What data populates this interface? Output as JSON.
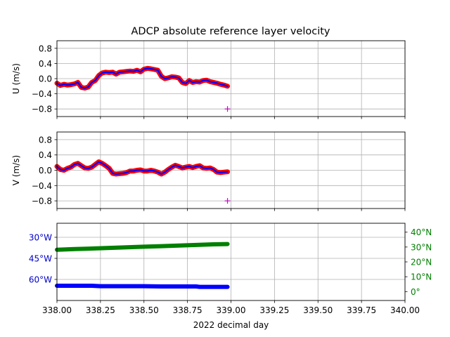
{
  "title": "ADCP absolute reference layer velocity",
  "chart_data": [
    {
      "type": "line",
      "panel": "u",
      "ylabel": "U (m/s)",
      "xlim": [
        338.0,
        340.0
      ],
      "ylim": [
        -1.0,
        1.0
      ],
      "yticks": [
        "0.8",
        "0.4",
        "0.0",
        "−0.4",
        "−0.8"
      ],
      "ytick_values": [
        0.8,
        0.4,
        0.0,
        -0.4,
        -0.8
      ],
      "grid": true,
      "series": [
        {
          "color_outer": "#ff0000",
          "color_inner": "#0000ff",
          "x": [
            338.0,
            338.02,
            338.04,
            338.06,
            338.08,
            338.1,
            338.12,
            338.14,
            338.16,
            338.18,
            338.2,
            338.22,
            338.24,
            338.26,
            338.28,
            338.3,
            338.32,
            338.34,
            338.36,
            338.38,
            338.4,
            338.42,
            338.44,
            338.46,
            338.48,
            338.5,
            338.52,
            338.54,
            338.56,
            338.58,
            338.6,
            338.62,
            338.64,
            338.66,
            338.68,
            338.7,
            338.72,
            338.74,
            338.76,
            338.78,
            338.8,
            338.82,
            338.84,
            338.86,
            338.88,
            338.9,
            338.92,
            338.94,
            338.96,
            338.98
          ],
          "y": [
            -0.12,
            -0.18,
            -0.15,
            -0.17,
            -0.16,
            -0.14,
            -0.1,
            -0.23,
            -0.25,
            -0.22,
            -0.1,
            -0.05,
            0.08,
            0.15,
            0.17,
            0.16,
            0.17,
            0.12,
            0.17,
            0.18,
            0.19,
            0.2,
            0.19,
            0.22,
            0.18,
            0.25,
            0.27,
            0.26,
            0.24,
            0.22,
            0.06,
            0.0,
            0.02,
            0.05,
            0.04,
            0.02,
            -0.1,
            -0.13,
            -0.05,
            -0.1,
            -0.08,
            -0.09,
            -0.05,
            -0.04,
            -0.08,
            -0.1,
            -0.12,
            -0.15,
            -0.17,
            -0.2
          ]
        }
      ],
      "markers": [
        {
          "x": 338.98,
          "y": -0.8,
          "symbol": "+",
          "color": "#cc00cc"
        }
      ]
    },
    {
      "type": "line",
      "panel": "v",
      "ylabel": "V (m/s)",
      "xlim": [
        338.0,
        340.0
      ],
      "ylim": [
        -1.0,
        1.0
      ],
      "yticks": [
        "0.8",
        "0.4",
        "0.0",
        "−0.4",
        "−0.8"
      ],
      "ytick_values": [
        0.8,
        0.4,
        0.0,
        -0.4,
        -0.8
      ],
      "grid": true,
      "series": [
        {
          "color_outer": "#ff0000",
          "color_inner": "#0000ff",
          "x": [
            338.0,
            338.02,
            338.04,
            338.06,
            338.08,
            338.1,
            338.12,
            338.14,
            338.16,
            338.18,
            338.2,
            338.22,
            338.24,
            338.26,
            338.28,
            338.3,
            338.32,
            338.34,
            338.36,
            338.38,
            338.4,
            338.42,
            338.44,
            338.46,
            338.48,
            338.5,
            338.52,
            338.54,
            338.56,
            338.58,
            338.6,
            338.62,
            338.64,
            338.66,
            338.68,
            338.7,
            338.72,
            338.74,
            338.76,
            338.78,
            338.8,
            338.82,
            338.84,
            338.86,
            338.88,
            338.9,
            338.92,
            338.94,
            338.96,
            338.98
          ],
          "y": [
            0.1,
            0.02,
            0.0,
            0.05,
            0.08,
            0.15,
            0.18,
            0.12,
            0.06,
            0.05,
            0.08,
            0.15,
            0.22,
            0.18,
            0.12,
            0.05,
            -0.08,
            -0.1,
            -0.09,
            -0.08,
            -0.06,
            -0.02,
            -0.02,
            0.0,
            0.01,
            -0.02,
            -0.02,
            0.0,
            -0.02,
            -0.05,
            -0.1,
            -0.05,
            0.02,
            0.08,
            0.13,
            0.1,
            0.06,
            0.08,
            0.1,
            0.07,
            0.1,
            0.12,
            0.06,
            0.05,
            0.06,
            0.02,
            -0.05,
            -0.06,
            -0.05,
            -0.04
          ]
        }
      ],
      "markers": [
        {
          "x": 338.98,
          "y": -0.8,
          "symbol": "+",
          "color": "#cc00cc"
        }
      ]
    },
    {
      "type": "scatter",
      "panel": "position",
      "xlabel": "2022 decimal day",
      "xlim": [
        338.0,
        340.0
      ],
      "xticks": [
        "338.00",
        "338.25",
        "338.50",
        "338.75",
        "339.00",
        "339.25",
        "339.50",
        "339.75",
        "340.00"
      ],
      "xtick_values": [
        338.0,
        338.25,
        338.5,
        338.75,
        339.0,
        339.25,
        339.5,
        339.75,
        340.0
      ],
      "left_axis": {
        "color": "#0000cc",
        "ylim": [
          -75,
          -20
        ],
        "yticks": [
          "30°W",
          "45°W",
          "60°W"
        ],
        "ytick_values": [
          -30,
          -45,
          -60
        ]
      },
      "right_axis": {
        "color": "#008000",
        "ylim": [
          -6,
          46
        ],
        "yticks": [
          "40°N",
          "30°N",
          "20°N",
          "10°N",
          "0°"
        ],
        "ytick_values": [
          40,
          30,
          20,
          10,
          0
        ]
      },
      "grid": true,
      "series": [
        {
          "axis": "left",
          "color": "#0000ff",
          "x": [
            338.0,
            338.1,
            338.2,
            338.25,
            338.3,
            338.4,
            338.5,
            338.6,
            338.7,
            338.8,
            338.82,
            338.9,
            338.98
          ],
          "y": [
            -64.5,
            -64.5,
            -64.5,
            -64.8,
            -64.8,
            -64.8,
            -64.8,
            -65.0,
            -65.0,
            -65.0,
            -65.3,
            -65.3,
            -65.3
          ]
        },
        {
          "axis": "right",
          "color": "#008000",
          "x": [
            338.0,
            338.1,
            338.2,
            338.3,
            338.4,
            338.5,
            338.6,
            338.7,
            338.8,
            338.9,
            338.98
          ],
          "y": [
            28.2,
            28.6,
            29.0,
            29.4,
            29.8,
            30.2,
            30.6,
            31.0,
            31.4,
            31.8,
            32.0
          ]
        }
      ]
    }
  ]
}
